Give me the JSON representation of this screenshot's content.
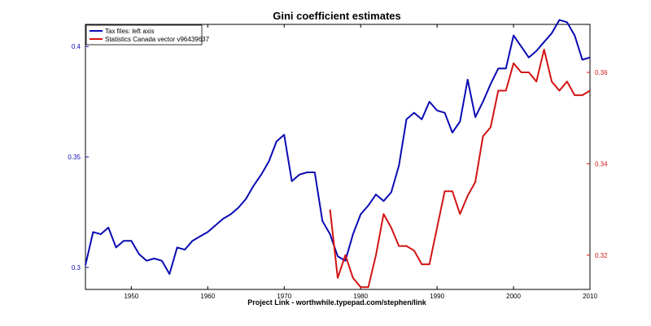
{
  "chart_data": {
    "type": "line",
    "title": "Gini coefficient estimates",
    "xlabel": "Project Link - worthwhile.typepad.com/stephen/link",
    "xlim": [
      1944,
      2010
    ],
    "x_ticks": [
      1950,
      1960,
      1970,
      1980,
      1990,
      2000,
      2010
    ],
    "grid": false,
    "legend_position": "top-left",
    "left_axis": {
      "ylim": [
        0.29,
        0.41
      ],
      "ticks": [
        0.3,
        0.35,
        0.4
      ],
      "tick_labels": [
        "0.3",
        "0.35",
        "0.4"
      ],
      "color": "#0a0ab4"
    },
    "right_axis": {
      "ylim": [
        0.3125,
        0.3705
      ],
      "ticks": [
        0.32,
        0.34,
        0.36
      ],
      "tick_labels": [
        "0.32",
        "0.34",
        "0.36"
      ],
      "color": "#d21414"
    },
    "series": [
      {
        "name": "Tax files: left axis",
        "axis": "left",
        "color": "#0a0ab4",
        "x": [
          1944,
          1945,
          1946,
          1947,
          1948,
          1949,
          1950,
          1951,
          1952,
          1953,
          1954,
          1955,
          1956,
          1957,
          1958,
          1959,
          1960,
          1961,
          1962,
          1963,
          1964,
          1965,
          1966,
          1967,
          1968,
          1969,
          1970,
          1971,
          1972,
          1973,
          1974,
          1975,
          1976,
          1977,
          1978,
          1979,
          1980,
          1981,
          1982,
          1983,
          1984,
          1985,
          1986,
          1987,
          1988,
          1989,
          1990,
          1991,
          1992,
          1993,
          1994,
          1995,
          1996,
          1997,
          1998,
          1999,
          2000,
          2001,
          2002,
          2003,
          2004,
          2005,
          2006,
          2007,
          2008,
          2009,
          2010
        ],
        "values": [
          0.301,
          0.316,
          0.315,
          0.318,
          0.309,
          0.312,
          0.312,
          0.306,
          0.303,
          0.304,
          0.303,
          0.297,
          0.309,
          0.308,
          0.312,
          0.314,
          0.316,
          0.319,
          0.322,
          0.324,
          0.327,
          0.331,
          0.337,
          0.342,
          0.348,
          0.357,
          0.36,
          0.339,
          0.342,
          0.343,
          0.343,
          0.321,
          0.315,
          0.305,
          0.303,
          0.315,
          0.324,
          0.328,
          0.333,
          0.33,
          0.334,
          0.346,
          0.367,
          0.37,
          0.367,
          0.375,
          0.371,
          0.37,
          0.361,
          0.366,
          0.385,
          0.368,
          0.375,
          0.383,
          0.39,
          0.39,
          0.405,
          0.4,
          0.395,
          0.398,
          0.402,
          0.406,
          0.412,
          0.411,
          0.405,
          0.394,
          0.395
        ]
      },
      {
        "name": "Statistics Canada vector v96439637",
        "axis": "right",
        "color": "#d21414",
        "x": [
          1976,
          1977,
          1978,
          1979,
          1980,
          1981,
          1982,
          1983,
          1984,
          1985,
          1986,
          1987,
          1988,
          1989,
          1990,
          1991,
          1992,
          1993,
          1994,
          1995,
          1996,
          1997,
          1998,
          1999,
          2000,
          2001,
          2002,
          2003,
          2004,
          2005,
          2006,
          2007,
          2008,
          2009,
          2010
        ],
        "values": [
          0.33,
          0.315,
          0.32,
          0.315,
          0.313,
          0.313,
          0.32,
          0.329,
          0.326,
          0.322,
          0.322,
          0.321,
          0.318,
          0.318,
          0.326,
          0.334,
          0.334,
          0.329,
          0.333,
          0.336,
          0.346,
          0.348,
          0.356,
          0.356,
          0.362,
          0.36,
          0.36,
          0.358,
          0.365,
          0.358,
          0.356,
          0.358,
          0.355,
          0.355,
          0.356
        ]
      }
    ]
  }
}
